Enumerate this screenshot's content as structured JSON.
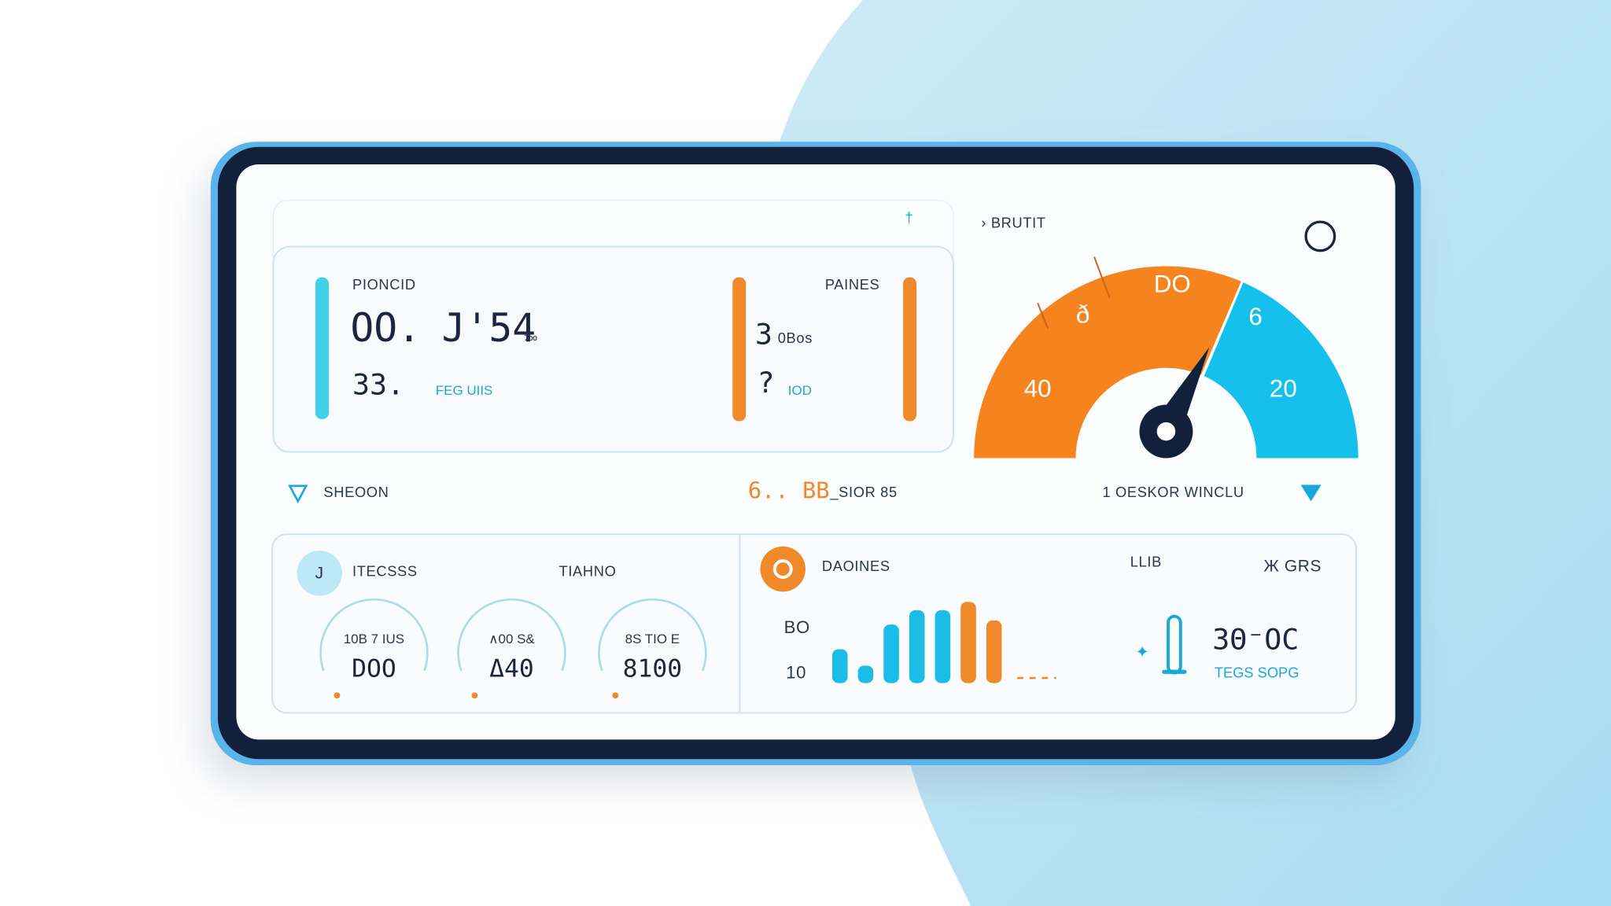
{
  "top_card": {
    "left_label": "PIONCID",
    "value1": "OO.",
    "value2": "J'54",
    "value2_unit": "‰",
    "value3": "33.",
    "value3_note": "FEG UIIS",
    "right_label": "PAINES",
    "right_value1": "3",
    "right_value1_unit": "0Bos",
    "right_value2": "?",
    "right_value2_unit": "IOD"
  },
  "marker": "†",
  "gauge": {
    "title": "BRUTIT",
    "labels": [
      "40",
      "ð",
      "DO",
      "6",
      "20"
    ]
  },
  "status_row": {
    "left": "SHEOON",
    "mid_value": "6.. BB",
    "mid_label": "_SIOR 85",
    "right": "1 OESKOR WINCLU"
  },
  "sensors": {
    "icon": "J",
    "title": "ITECSSS",
    "subtitle": "TIAHNO",
    "dials": [
      {
        "caption": "10B 7 IUS",
        "value": "DOO"
      },
      {
        "caption": "∧00 S&",
        "value": "Δ40"
      },
      {
        "caption": "8S TIO E",
        "value": "8100"
      }
    ]
  },
  "activity": {
    "title": "DAOINES",
    "tag": "LLIB",
    "action": "Ж GRS",
    "axis_labels": [
      "BO",
      "10"
    ],
    "bars": {
      "values": [
        33,
        17,
        57,
        71,
        71,
        79,
        61
      ],
      "colors": [
        "#1bbde6",
        "#1bbde6",
        "#1bbde6",
        "#1bbde6",
        "#1bbde6",
        "#f0892a",
        "#f0892a"
      ]
    }
  },
  "temperature": {
    "value": "3Θ⁻OC",
    "label": "TEGS SOPG"
  }
}
